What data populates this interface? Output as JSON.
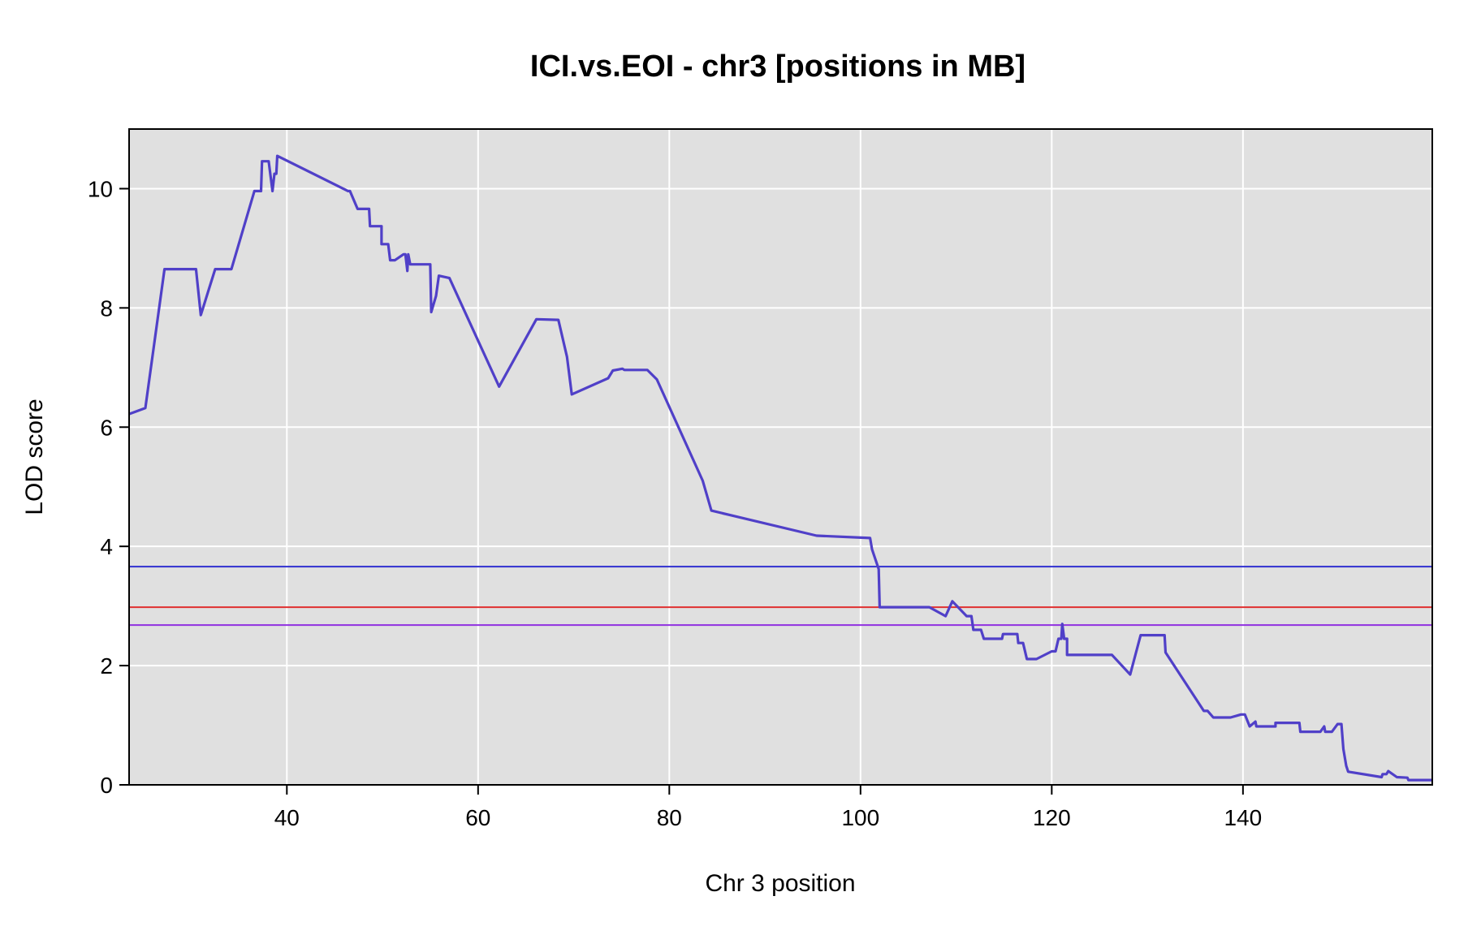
{
  "chart_data": {
    "type": "line",
    "title": "ICI.vs.EOI - chr3 [positions in MB]",
    "xlabel": "Chr 3 position",
    "ylabel": "LOD score",
    "xlim": [
      23.5,
      159.8
    ],
    "ylim": [
      0,
      11
    ],
    "x_ticks": [
      40,
      60,
      80,
      100,
      120,
      140
    ],
    "y_ticks": [
      0,
      2,
      4,
      6,
      8,
      10
    ],
    "grid": true,
    "background": "#e0e0e0",
    "grid_color": "#ffffff",
    "series": [
      {
        "color": "#5040c8",
        "points": [
          [
            23.5,
            6.22
          ],
          [
            25.2,
            6.32
          ],
          [
            27.2,
            8.65
          ],
          [
            28.5,
            8.65
          ],
          [
            30.5,
            8.65
          ],
          [
            31.0,
            7.88
          ],
          [
            32.5,
            8.65
          ],
          [
            34.2,
            8.65
          ],
          [
            36.6,
            9.96
          ],
          [
            37.3,
            9.96
          ],
          [
            37.4,
            10.46
          ],
          [
            38.0,
            10.46
          ],
          [
            38.1,
            10.46
          ],
          [
            38.5,
            9.96
          ],
          [
            38.7,
            10.25
          ],
          [
            38.9,
            10.25
          ],
          [
            39.0,
            10.55
          ],
          [
            46.4,
            9.96
          ],
          [
            46.6,
            9.96
          ],
          [
            47.4,
            9.66
          ],
          [
            48.6,
            9.66
          ],
          [
            48.7,
            9.37
          ],
          [
            49.9,
            9.37
          ],
          [
            49.9,
            9.07
          ],
          [
            50.6,
            9.07
          ],
          [
            50.8,
            8.8
          ],
          [
            51.3,
            8.8
          ],
          [
            52.2,
            8.9
          ],
          [
            52.4,
            8.9
          ],
          [
            52.6,
            8.62
          ],
          [
            52.7,
            8.9
          ],
          [
            52.9,
            8.73
          ],
          [
            55.0,
            8.73
          ],
          [
            55.1,
            7.93
          ],
          [
            55.6,
            8.2
          ],
          [
            55.9,
            8.54
          ],
          [
            57.0,
            8.5
          ],
          [
            62.2,
            6.68
          ],
          [
            66.1,
            7.81
          ],
          [
            68.4,
            7.8
          ],
          [
            69.3,
            7.18
          ],
          [
            69.8,
            6.55
          ],
          [
            73.6,
            6.82
          ],
          [
            74.1,
            6.95
          ],
          [
            75.1,
            6.98
          ],
          [
            75.3,
            6.96
          ],
          [
            77.7,
            6.96
          ],
          [
            78.7,
            6.8
          ],
          [
            83.5,
            5.1
          ],
          [
            84.4,
            4.6
          ],
          [
            95.4,
            4.18
          ],
          [
            101.0,
            4.14
          ],
          [
            101.2,
            3.95
          ],
          [
            101.9,
            3.62
          ],
          [
            102.0,
            2.98
          ],
          [
            107.2,
            2.98
          ],
          [
            108.9,
            2.83
          ],
          [
            109.6,
            3.08
          ],
          [
            111.1,
            2.83
          ],
          [
            111.6,
            2.83
          ],
          [
            111.8,
            2.6
          ],
          [
            112.6,
            2.6
          ],
          [
            112.9,
            2.45
          ],
          [
            114.8,
            2.45
          ],
          [
            114.9,
            2.53
          ],
          [
            116.4,
            2.53
          ],
          [
            116.5,
            2.38
          ],
          [
            117.0,
            2.38
          ],
          [
            117.4,
            2.11
          ],
          [
            118.4,
            2.11
          ],
          [
            120.0,
            2.24
          ],
          [
            120.4,
            2.24
          ],
          [
            120.7,
            2.45
          ],
          [
            121.0,
            2.45
          ],
          [
            121.1,
            2.7
          ],
          [
            121.3,
            2.45
          ],
          [
            121.6,
            2.45
          ],
          [
            121.6,
            2.18
          ],
          [
            126.3,
            2.18
          ],
          [
            128.2,
            1.85
          ],
          [
            129.3,
            2.51
          ],
          [
            131.8,
            2.51
          ],
          [
            131.9,
            2.22
          ],
          [
            135.9,
            1.24
          ],
          [
            136.3,
            1.24
          ],
          [
            136.9,
            1.13
          ],
          [
            138.7,
            1.13
          ],
          [
            139.8,
            1.18
          ],
          [
            140.2,
            1.18
          ],
          [
            140.7,
            0.98
          ],
          [
            141.3,
            1.06
          ],
          [
            141.4,
            0.98
          ],
          [
            143.4,
            0.98
          ],
          [
            143.4,
            1.04
          ],
          [
            145.9,
            1.04
          ],
          [
            146.0,
            0.89
          ],
          [
            148.1,
            0.89
          ],
          [
            148.5,
            0.98
          ],
          [
            148.6,
            0.89
          ],
          [
            149.3,
            0.89
          ],
          [
            149.9,
            1.02
          ],
          [
            150.3,
            1.02
          ],
          [
            150.5,
            0.6
          ],
          [
            150.8,
            0.32
          ],
          [
            151.0,
            0.22
          ],
          [
            154.5,
            0.13
          ],
          [
            154.6,
            0.18
          ],
          [
            155.0,
            0.18
          ],
          [
            155.2,
            0.23
          ],
          [
            156.1,
            0.13
          ],
          [
            157.2,
            0.12
          ],
          [
            157.3,
            0.08
          ],
          [
            159.8,
            0.08
          ]
        ]
      }
    ],
    "thresholds": [
      {
        "value": 3.66,
        "color": "#3030d0"
      },
      {
        "value": 2.98,
        "color": "#e03030"
      },
      {
        "value": 2.68,
        "color": "#9030e0"
      }
    ]
  }
}
